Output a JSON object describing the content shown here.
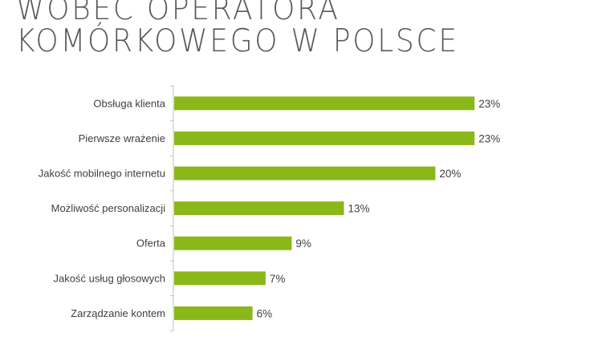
{
  "title_lines": [
    "WOBEC OPERATORA",
    "KOMÓRKOWEGO W POLSCE"
  ],
  "chart_data": {
    "type": "bar",
    "orientation": "horizontal",
    "categories": [
      "Obsługa klienta",
      "Pierwsze wrażenie",
      "Jakość mobilnego internetu",
      "Możliwość personalizacji",
      "Oferta",
      "Jakość usług głosowych",
      "Zarządzanie kontem"
    ],
    "values": [
      23,
      23,
      20,
      13,
      9,
      7,
      6
    ],
    "value_labels": [
      "23%",
      "23%",
      "20%",
      "13%",
      "9%",
      "7%",
      "6%"
    ],
    "unit": "%",
    "xlim": [
      0,
      25
    ],
    "grid": false,
    "bar_color": "#8ab81a"
  }
}
